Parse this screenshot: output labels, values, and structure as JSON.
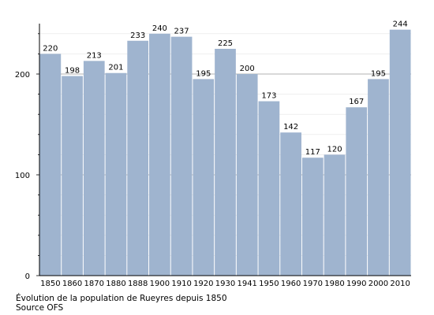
{
  "chart_data": {
    "type": "bar",
    "categories": [
      "1850",
      "1860",
      "1870",
      "1880",
      "1888",
      "1900",
      "1910",
      "1920",
      "1930",
      "1941",
      "1950",
      "1960",
      "1970",
      "1980",
      "1990",
      "2000",
      "2010"
    ],
    "values": [
      220,
      198,
      213,
      201,
      233,
      240,
      237,
      195,
      225,
      200,
      173,
      142,
      117,
      120,
      167,
      195,
      244
    ],
    "ylim": [
      0,
      250
    ],
    "yticks": [
      0,
      100,
      200
    ],
    "grid": true,
    "bar_color": "#9fb4cf",
    "title": "",
    "xlabel": "",
    "ylabel": ""
  },
  "caption": {
    "line1": "Évolution de la population de Rueyres depuis 1850",
    "line2": "Source OFS"
  }
}
